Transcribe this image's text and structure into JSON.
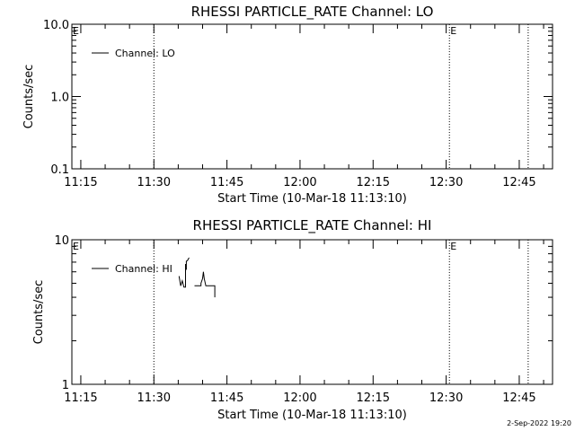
{
  "chart_data": [
    {
      "type": "line",
      "title": "RHESSI PARTICLE_RATE Channel: LO",
      "xlabel": "Start Time (10-Mar-18 11:13:10)",
      "ylabel": "Counts/sec",
      "yscale": "log",
      "ylim": [
        0.1,
        10.0
      ],
      "ytick_labels": [
        "10.0",
        "1.0",
        "0.1"
      ],
      "yticks": [
        10.0,
        1.0,
        0.1
      ],
      "xlim": [
        "11:13:10",
        "12:51:50"
      ],
      "xtick_labels": [
        "11:15",
        "11:30",
        "11:45",
        "12:00",
        "12:15",
        "12:30",
        "12:45"
      ],
      "xticks": [
        "11:15:00",
        "11:30:00",
        "11:45:00",
        "12:00:00",
        "12:15:00",
        "12:30:00",
        "12:45:00"
      ],
      "legend_loc": "top-left",
      "series": [
        {
          "name": "Channel: LO",
          "x": [],
          "y": []
        }
      ],
      "event_lines": [
        "11:30:00",
        "12:30:40",
        "12:46:50"
      ],
      "event_flags": [
        {
          "label": "E",
          "x": "11:13:10"
        },
        {
          "label": "E",
          "x": "12:30:40"
        }
      ]
    },
    {
      "type": "line",
      "title": "RHESSI PARTICLE_RATE Channel: HI",
      "xlabel": "Start Time (10-Mar-18 11:13:10)",
      "ylabel": "Counts/sec",
      "yscale": "log",
      "ylim": [
        1,
        10
      ],
      "ytick_labels": [
        "10",
        "1"
      ],
      "yticks": [
        10,
        1
      ],
      "xlim": [
        "11:13:10",
        "12:51:50"
      ],
      "xtick_labels": [
        "11:15",
        "11:30",
        "11:45",
        "12:00",
        "12:15",
        "12:30",
        "12:45"
      ],
      "xticks": [
        "11:15:00",
        "11:30:00",
        "11:45:00",
        "12:00:00",
        "12:15:00",
        "12:30:00",
        "12:45:00"
      ],
      "legend_loc": "top-left",
      "series": [
        {
          "name": "Channel: HI",
          "x": [
            "11:35:10",
            "11:35:30",
            "11:35:50",
            "11:36:10",
            "11:36:30",
            "11:36:30",
            "11:36:40",
            "11:36:40",
            "11:36:55",
            "11:37:05",
            "11:37:15",
            "11:38:20",
            "11:38:20",
            "11:39:40",
            "11:39:40",
            "11:40:00",
            "11:40:10",
            "11:40:20",
            "11:40:40",
            "11:42:30",
            "11:42:30"
          ],
          "y": [
            5.6,
            4.8,
            5.2,
            4.7,
            4.7,
            6.8,
            6.2,
            7.1,
            7.2,
            7.4,
            7.5,
            null,
            4.8,
            4.8,
            5.0,
            5.4,
            6.0,
            5.4,
            4.8,
            4.8,
            4.0
          ]
        }
      ],
      "event_lines": [
        "11:30:00",
        "12:30:40",
        "12:46:50"
      ],
      "event_flags": [
        {
          "label": "E",
          "x": "11:13:10"
        },
        {
          "label": "E",
          "x": "12:30:40"
        }
      ]
    }
  ],
  "footer": {
    "timestamp": "2-Sep-2022 19:20"
  }
}
